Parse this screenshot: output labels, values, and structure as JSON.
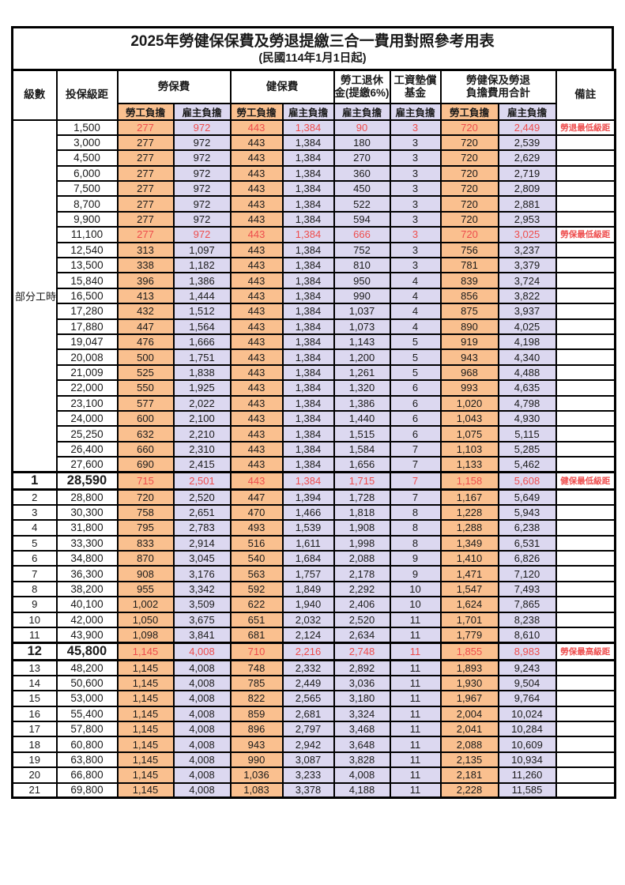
{
  "title": "2025年勞健保保費及勞退提繳三合一費用對照參考用表",
  "subtitle": "(民國114年1月1日起)",
  "colors": {
    "employee_bg": "#FAC08F",
    "employer_bg": "#DCD8F0",
    "highlight_red": "#EE4D4D",
    "border": "#000000"
  },
  "header": {
    "level": "級數",
    "bracket": "投保級距",
    "labor": "勞保費",
    "health": "健保費",
    "pension_line1": "勞工退休",
    "pension_line2": "金(提繳6%)",
    "wage_line1": "工資墊償",
    "wage_line2": "基金",
    "total_line1": "勞健保及勞退",
    "total_line2": "負擔費用合計",
    "remark": "備註",
    "employee": "勞工負擔",
    "employer": "雇主負擔"
  },
  "part_time": {
    "label": "部分工時",
    "row_count": 23
  },
  "rows": [
    {
      "level": "",
      "bracket": "1,500",
      "v": [
        "277",
        "972",
        "443",
        "1,384",
        "90",
        "3",
        "720",
        "2,449"
      ],
      "remark": "勞退最低級距",
      "red": true,
      "thick": false,
      "big": false
    },
    {
      "level": "",
      "bracket": "3,000",
      "v": [
        "277",
        "972",
        "443",
        "1,384",
        "180",
        "3",
        "720",
        "2,539"
      ],
      "remark": "",
      "red": false,
      "thick": false,
      "big": false
    },
    {
      "level": "",
      "bracket": "4,500",
      "v": [
        "277",
        "972",
        "443",
        "1,384",
        "270",
        "3",
        "720",
        "2,629"
      ],
      "remark": "",
      "red": false,
      "thick": false,
      "big": false
    },
    {
      "level": "",
      "bracket": "6,000",
      "v": [
        "277",
        "972",
        "443",
        "1,384",
        "360",
        "3",
        "720",
        "2,719"
      ],
      "remark": "",
      "red": false,
      "thick": false,
      "big": false
    },
    {
      "level": "",
      "bracket": "7,500",
      "v": [
        "277",
        "972",
        "443",
        "1,384",
        "450",
        "3",
        "720",
        "2,809"
      ],
      "remark": "",
      "red": false,
      "thick": false,
      "big": false
    },
    {
      "level": "",
      "bracket": "8,700",
      "v": [
        "277",
        "972",
        "443",
        "1,384",
        "522",
        "3",
        "720",
        "2,881"
      ],
      "remark": "",
      "red": false,
      "thick": false,
      "big": false
    },
    {
      "level": "",
      "bracket": "9,900",
      "v": [
        "277",
        "972",
        "443",
        "1,384",
        "594",
        "3",
        "720",
        "2,953"
      ],
      "remark": "",
      "red": false,
      "thick": false,
      "big": false
    },
    {
      "level": "",
      "bracket": "11,100",
      "v": [
        "277",
        "972",
        "443",
        "1,384",
        "666",
        "3",
        "720",
        "3,025"
      ],
      "remark": "勞保最低級距",
      "red": true,
      "thick": false,
      "big": false
    },
    {
      "level": "",
      "bracket": "12,540",
      "v": [
        "313",
        "1,097",
        "443",
        "1,384",
        "752",
        "3",
        "756",
        "3,237"
      ],
      "remark": "",
      "red": false,
      "thick": false,
      "big": false
    },
    {
      "level": "",
      "bracket": "13,500",
      "v": [
        "338",
        "1,182",
        "443",
        "1,384",
        "810",
        "3",
        "781",
        "3,379"
      ],
      "remark": "",
      "red": false,
      "thick": false,
      "big": false
    },
    {
      "level": "",
      "bracket": "15,840",
      "v": [
        "396",
        "1,386",
        "443",
        "1,384",
        "950",
        "4",
        "839",
        "3,724"
      ],
      "remark": "",
      "red": false,
      "thick": false,
      "big": false
    },
    {
      "level": "",
      "bracket": "16,500",
      "v": [
        "413",
        "1,444",
        "443",
        "1,384",
        "990",
        "4",
        "856",
        "3,822"
      ],
      "remark": "",
      "red": false,
      "thick": false,
      "big": false
    },
    {
      "level": "",
      "bracket": "17,280",
      "v": [
        "432",
        "1,512",
        "443",
        "1,384",
        "1,037",
        "4",
        "875",
        "3,937"
      ],
      "remark": "",
      "red": false,
      "thick": false,
      "big": false
    },
    {
      "level": "",
      "bracket": "17,880",
      "v": [
        "447",
        "1,564",
        "443",
        "1,384",
        "1,073",
        "4",
        "890",
        "4,025"
      ],
      "remark": "",
      "red": false,
      "thick": false,
      "big": false
    },
    {
      "level": "",
      "bracket": "19,047",
      "v": [
        "476",
        "1,666",
        "443",
        "1,384",
        "1,143",
        "5",
        "919",
        "4,198"
      ],
      "remark": "",
      "red": false,
      "thick": false,
      "big": false
    },
    {
      "level": "",
      "bracket": "20,008",
      "v": [
        "500",
        "1,751",
        "443",
        "1,384",
        "1,200",
        "5",
        "943",
        "4,340"
      ],
      "remark": "",
      "red": false,
      "thick": false,
      "big": false
    },
    {
      "level": "",
      "bracket": "21,009",
      "v": [
        "525",
        "1,838",
        "443",
        "1,384",
        "1,261",
        "5",
        "968",
        "4,488"
      ],
      "remark": "",
      "red": false,
      "thick": false,
      "big": false
    },
    {
      "level": "",
      "bracket": "22,000",
      "v": [
        "550",
        "1,925",
        "443",
        "1,384",
        "1,320",
        "6",
        "993",
        "4,635"
      ],
      "remark": "",
      "red": false,
      "thick": false,
      "big": false
    },
    {
      "level": "",
      "bracket": "23,100",
      "v": [
        "577",
        "2,022",
        "443",
        "1,384",
        "1,386",
        "6",
        "1,020",
        "4,798"
      ],
      "remark": "",
      "red": false,
      "thick": false,
      "big": false
    },
    {
      "level": "",
      "bracket": "24,000",
      "v": [
        "600",
        "2,100",
        "443",
        "1,384",
        "1,440",
        "6",
        "1,043",
        "4,930"
      ],
      "remark": "",
      "red": false,
      "thick": false,
      "big": false
    },
    {
      "level": "",
      "bracket": "25,250",
      "v": [
        "632",
        "2,210",
        "443",
        "1,384",
        "1,515",
        "6",
        "1,075",
        "5,115"
      ],
      "remark": "",
      "red": false,
      "thick": false,
      "big": false
    },
    {
      "level": "",
      "bracket": "26,400",
      "v": [
        "660",
        "2,310",
        "443",
        "1,384",
        "1,584",
        "7",
        "1,103",
        "5,285"
      ],
      "remark": "",
      "red": false,
      "thick": false,
      "big": false
    },
    {
      "level": "",
      "bracket": "27,600",
      "v": [
        "690",
        "2,415",
        "443",
        "1,384",
        "1,656",
        "7",
        "1,133",
        "5,462"
      ],
      "remark": "",
      "red": false,
      "thick": false,
      "big": false
    },
    {
      "level": "1",
      "bracket": "28,590",
      "v": [
        "715",
        "2,501",
        "443",
        "1,384",
        "1,715",
        "7",
        "1,158",
        "5,608"
      ],
      "remark": "健保最低級距",
      "red": true,
      "thick": true,
      "big": true
    },
    {
      "level": "2",
      "bracket": "28,800",
      "v": [
        "720",
        "2,520",
        "447",
        "1,394",
        "1,728",
        "7",
        "1,167",
        "5,649"
      ],
      "remark": "",
      "red": false,
      "thick": false,
      "big": false
    },
    {
      "level": "3",
      "bracket": "30,300",
      "v": [
        "758",
        "2,651",
        "470",
        "1,466",
        "1,818",
        "8",
        "1,228",
        "5,943"
      ],
      "remark": "",
      "red": false,
      "thick": false,
      "big": false
    },
    {
      "level": "4",
      "bracket": "31,800",
      "v": [
        "795",
        "2,783",
        "493",
        "1,539",
        "1,908",
        "8",
        "1,288",
        "6,238"
      ],
      "remark": "",
      "red": false,
      "thick": false,
      "big": false
    },
    {
      "level": "5",
      "bracket": "33,300",
      "v": [
        "833",
        "2,914",
        "516",
        "1,611",
        "1,998",
        "8",
        "1,349",
        "6,531"
      ],
      "remark": "",
      "red": false,
      "thick": false,
      "big": false
    },
    {
      "level": "6",
      "bracket": "34,800",
      "v": [
        "870",
        "3,045",
        "540",
        "1,684",
        "2,088",
        "9",
        "1,410",
        "6,826"
      ],
      "remark": "",
      "red": false,
      "thick": false,
      "big": false
    },
    {
      "level": "7",
      "bracket": "36,300",
      "v": [
        "908",
        "3,176",
        "563",
        "1,757",
        "2,178",
        "9",
        "1,471",
        "7,120"
      ],
      "remark": "",
      "red": false,
      "thick": false,
      "big": false
    },
    {
      "level": "8",
      "bracket": "38,200",
      "v": [
        "955",
        "3,342",
        "592",
        "1,849",
        "2,292",
        "10",
        "1,547",
        "7,493"
      ],
      "remark": "",
      "red": false,
      "thick": false,
      "big": false
    },
    {
      "level": "9",
      "bracket": "40,100",
      "v": [
        "1,002",
        "3,509",
        "622",
        "1,940",
        "2,406",
        "10",
        "1,624",
        "7,865"
      ],
      "remark": "",
      "red": false,
      "thick": false,
      "big": false
    },
    {
      "level": "10",
      "bracket": "42,000",
      "v": [
        "1,050",
        "3,675",
        "651",
        "2,032",
        "2,520",
        "11",
        "1,701",
        "8,238"
      ],
      "remark": "",
      "red": false,
      "thick": false,
      "big": false
    },
    {
      "level": "11",
      "bracket": "43,900",
      "v": [
        "1,098",
        "3,841",
        "681",
        "2,124",
        "2,634",
        "11",
        "1,779",
        "8,610"
      ],
      "remark": "",
      "red": false,
      "thick": false,
      "big": false
    },
    {
      "level": "12",
      "bracket": "45,800",
      "v": [
        "1,145",
        "4,008",
        "710",
        "2,216",
        "2,748",
        "11",
        "1,855",
        "8,983"
      ],
      "remark": "勞保最高級距",
      "red": true,
      "thick": true,
      "big": true
    },
    {
      "level": "13",
      "bracket": "48,200",
      "v": [
        "1,145",
        "4,008",
        "748",
        "2,332",
        "2,892",
        "11",
        "1,893",
        "9,243"
      ],
      "remark": "",
      "red": false,
      "thick": false,
      "big": false
    },
    {
      "level": "14",
      "bracket": "50,600",
      "v": [
        "1,145",
        "4,008",
        "785",
        "2,449",
        "3,036",
        "11",
        "1,930",
        "9,504"
      ],
      "remark": "",
      "red": false,
      "thick": false,
      "big": false
    },
    {
      "level": "15",
      "bracket": "53,000",
      "v": [
        "1,145",
        "4,008",
        "822",
        "2,565",
        "3,180",
        "11",
        "1,967",
        "9,764"
      ],
      "remark": "",
      "red": false,
      "thick": false,
      "big": false
    },
    {
      "level": "16",
      "bracket": "55,400",
      "v": [
        "1,145",
        "4,008",
        "859",
        "2,681",
        "3,324",
        "11",
        "2,004",
        "10,024"
      ],
      "remark": "",
      "red": false,
      "thick": false,
      "big": false
    },
    {
      "level": "17",
      "bracket": "57,800",
      "v": [
        "1,145",
        "4,008",
        "896",
        "2,797",
        "3,468",
        "11",
        "2,041",
        "10,284"
      ],
      "remark": "",
      "red": false,
      "thick": false,
      "big": false
    },
    {
      "level": "18",
      "bracket": "60,800",
      "v": [
        "1,145",
        "4,008",
        "943",
        "2,942",
        "3,648",
        "11",
        "2,088",
        "10,609"
      ],
      "remark": "",
      "red": false,
      "thick": false,
      "big": false
    },
    {
      "level": "19",
      "bracket": "63,800",
      "v": [
        "1,145",
        "4,008",
        "990",
        "3,087",
        "3,828",
        "11",
        "2,135",
        "10,934"
      ],
      "remark": "",
      "red": false,
      "thick": false,
      "big": false
    },
    {
      "level": "20",
      "bracket": "66,800",
      "v": [
        "1,145",
        "4,008",
        "1,036",
        "3,233",
        "4,008",
        "11",
        "2,181",
        "11,260"
      ],
      "remark": "",
      "red": false,
      "thick": false,
      "big": false
    },
    {
      "level": "21",
      "bracket": "69,800",
      "v": [
        "1,145",
        "4,008",
        "1,083",
        "3,378",
        "4,188",
        "11",
        "2,228",
        "11,585"
      ],
      "remark": "",
      "red": false,
      "thick": false,
      "big": false
    }
  ]
}
